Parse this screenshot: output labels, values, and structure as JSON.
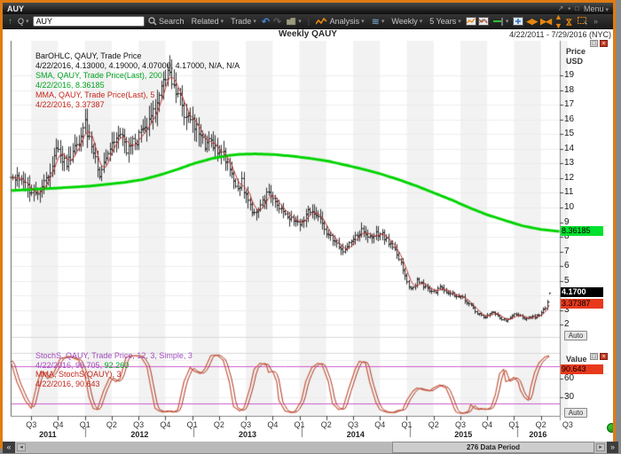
{
  "window": {
    "title": "AUY",
    "menu_label": "Menu"
  },
  "toolbar": {
    "quote_type": "Q",
    "symbol_input": "AUY",
    "search_label": "Search",
    "related_label": "Related",
    "trade_label": "Trade",
    "analysis_label": "Analysis",
    "period_label": "Weekly",
    "range_label": "5 Years"
  },
  "chart": {
    "title": "Weekly QAUY",
    "date_range": "4/22/2011 - 7/29/2016 (NYC)",
    "legend_main": {
      "l1": "BarOHLC, QAUY, Trade Price",
      "l2": "4/22/2016, 4.13000, 4.19000, 4.07000, 4.17000, N/A, N/A",
      "l3": "SMA, QAUY, Trade Price(Last),  200",
      "l4": "4/22/2016, 8.36185",
      "l5": "MMA, QAUY, Trade Price(Last),  5",
      "l6": "4/22/2016, 3.37387"
    },
    "legend_stoch": {
      "l1": "StochS, QAUY, Trade Price,  12, 3, Simple, 3",
      "l2a": "4/22/2016, 96.705, ",
      "l2b": "92.260",
      "l3": "MMA, StochS(QAUY),  3",
      "l4": "4/22/2016, 90.643"
    },
    "price_axis": {
      "header_line1": "Price",
      "header_line2": "USD",
      "ticks": [
        19,
        18,
        17,
        16,
        15,
        14,
        13,
        12,
        11,
        10,
        9,
        8,
        7,
        6,
        5,
        4,
        3,
        2
      ],
      "sma_badge": "8.36185",
      "last_badge": "4.1700",
      "mma_badge": "3.37387",
      "auto_label": "Auto"
    },
    "value_axis": {
      "header": "Value",
      "ticks": [
        60,
        30
      ],
      "badge": "90.643",
      "auto_label": "Auto"
    },
    "x_axis": {
      "quarter_labels": [
        "Q3",
        "Q4",
        "Q1",
        "Q2",
        "Q3",
        "Q4",
        "Q1",
        "Q2",
        "Q3",
        "Q4",
        "Q1",
        "Q2",
        "Q3",
        "Q4",
        "Q1",
        "Q2",
        "Q3",
        "Q4",
        "Q1",
        "Q2",
        "Q3"
      ],
      "first_quarter_week": 10,
      "weeks_per_quarter": 13,
      "years": [
        {
          "label": "2011",
          "week": 18
        },
        {
          "label": "2012",
          "week": 62.5
        },
        {
          "label": "2013",
          "week": 114.8
        },
        {
          "label": "2014",
          "week": 167.2
        },
        {
          "label": "2015",
          "week": 219.4
        },
        {
          "label": "2016",
          "week": 255.6
        }
      ],
      "year_boundary_weeks": [
        36.3,
        88.7,
        141,
        193.3,
        245.6
      ]
    }
  },
  "scrollbar": {
    "label": "276 Data Period"
  },
  "chart_data": {
    "type": "ohlc",
    "symbol": "QAUY",
    "period": "Weekly",
    "visible_range": {
      "start": "4/22/2011",
      "end": "7/29/2016"
    },
    "data_period_count": 276,
    "bar_weeks": 262,
    "price_range_shown": [
      2,
      19
    ],
    "last_bar": {
      "date": "4/22/2016",
      "open": 4.13,
      "high": 4.19,
      "low": 4.07,
      "close": 4.17
    },
    "sma200_last": 8.36185,
    "mma5_last": 3.37387,
    "stoch_last": {
      "stoch": 96.705,
      "signal": 92.26,
      "mma": 90.643
    },
    "stoch_bands": [
      80,
      20
    ],
    "colors": {
      "bars": "#1a1a1a",
      "sma": "#00d400",
      "mma": "#c03030",
      "stoch": "#c8583b",
      "stoch_mma": "#aa3224",
      "bands": "#cd5ccd",
      "stripe": "#f2f2f2",
      "grid": "#ececec",
      "badge_green": "#00e12e",
      "badge_black": "#000000",
      "badge_red": "#e8391d"
    },
    "close_anchors": [
      [
        0,
        12.2
      ],
      [
        6,
        11.6
      ],
      [
        12,
        10.9
      ],
      [
        18,
        12.3
      ],
      [
        23,
        14.2
      ],
      [
        26,
        13.0
      ],
      [
        29,
        13.3
      ],
      [
        33,
        14.6
      ],
      [
        36,
        15.6
      ],
      [
        40,
        13.8
      ],
      [
        43,
        12.4
      ],
      [
        46,
        13.5
      ],
      [
        50,
        14.6
      ],
      [
        53,
        14.9
      ],
      [
        56,
        14.0
      ],
      [
        59,
        14.3
      ],
      [
        62,
        14.8
      ],
      [
        65,
        15.2
      ],
      [
        68,
        16.0
      ],
      [
        71,
        17.3
      ],
      [
        74,
        18.3
      ],
      [
        76,
        19.3
      ],
      [
        78,
        18.5
      ],
      [
        80,
        18.2
      ],
      [
        82,
        17.4
      ],
      [
        84,
        16.3
      ],
      [
        86,
        15.9
      ],
      [
        88,
        16.1
      ],
      [
        90,
        15.3
      ],
      [
        93,
        14.6
      ],
      [
        95,
        14.1
      ],
      [
        97,
        14.5
      ],
      [
        99,
        14.2
      ],
      [
        101,
        13.9
      ],
      [
        103,
        13.5
      ],
      [
        106,
        12.6
      ],
      [
        108,
        11.9
      ],
      [
        110,
        11.3
      ],
      [
        112,
        11.7
      ],
      [
        114,
        10.9
      ],
      [
        116,
        10.1
      ],
      [
        118,
        9.6
      ],
      [
        121,
        10.1
      ],
      [
        123,
        10.7
      ],
      [
        125,
        10.9
      ],
      [
        127,
        10.5
      ],
      [
        129,
        10.0
      ],
      [
        131,
        9.7
      ],
      [
        133,
        9.4
      ],
      [
        136,
        9.2
      ],
      [
        138,
        8.9
      ],
      [
        140,
        8.7
      ],
      [
        142,
        9.2
      ],
      [
        144,
        9.7
      ],
      [
        146,
        9.5
      ],
      [
        149,
        9.2
      ],
      [
        151,
        8.8
      ],
      [
        153,
        8.4
      ],
      [
        155,
        8.0
      ],
      [
        157,
        7.6
      ],
      [
        159,
        7.3
      ],
      [
        161,
        7.1
      ],
      [
        164,
        7.4
      ],
      [
        166,
        7.9
      ],
      [
        168,
        8.2
      ],
      [
        170,
        8.4
      ],
      [
        172,
        8.2
      ],
      [
        174,
        7.9
      ],
      [
        176,
        8.1
      ],
      [
        179,
        8.3
      ],
      [
        181,
        8.0
      ],
      [
        183,
        7.7
      ],
      [
        185,
        7.3
      ],
      [
        187,
        6.8
      ],
      [
        189,
        6.2
      ],
      [
        190,
        5.6
      ],
      [
        192,
        4.9
      ],
      [
        194,
        4.5
      ],
      [
        196,
        4.7
      ],
      [
        197,
        5.0
      ],
      [
        199,
        4.8
      ],
      [
        201,
        4.6
      ],
      [
        203,
        4.4
      ],
      [
        204,
        4.2
      ],
      [
        206,
        4.3
      ],
      [
        208,
        4.5
      ],
      [
        210,
        4.4
      ],
      [
        212,
        4.2
      ],
      [
        214,
        4.1
      ],
      [
        216,
        4.0
      ],
      [
        218,
        3.9
      ],
      [
        220,
        3.7
      ],
      [
        222,
        3.4
      ],
      [
        224,
        3.1
      ],
      [
        226,
        2.8
      ],
      [
        228,
        2.6
      ],
      [
        230,
        2.5
      ],
      [
        232,
        2.7
      ],
      [
        234,
        2.9
      ],
      [
        236,
        2.6
      ],
      [
        238,
        2.4
      ],
      [
        240,
        2.3
      ],
      [
        242,
        2.5
      ],
      [
        244,
        2.8
      ],
      [
        246,
        2.7
      ],
      [
        248,
        2.5
      ],
      [
        250,
        2.4
      ],
      [
        252,
        2.6
      ],
      [
        254,
        2.5
      ],
      [
        256,
        2.7
      ],
      [
        258,
        3.0
      ],
      [
        259,
        3.2
      ],
      [
        260,
        3.6
      ],
      [
        261,
        4.17
      ]
    ],
    "sma200_anchors": [
      [
        0,
        11.15
      ],
      [
        20,
        11.3
      ],
      [
        38,
        11.45
      ],
      [
        55,
        11.7
      ],
      [
        64,
        11.9
      ],
      [
        72,
        12.2
      ],
      [
        81,
        12.6
      ],
      [
        89,
        13.0
      ],
      [
        98,
        13.35
      ],
      [
        106,
        13.55
      ],
      [
        111,
        13.62
      ],
      [
        119,
        13.65
      ],
      [
        128,
        13.6
      ],
      [
        136,
        13.5
      ],
      [
        145,
        13.35
      ],
      [
        154,
        13.15
      ],
      [
        162,
        12.9
      ],
      [
        171,
        12.6
      ],
      [
        179,
        12.3
      ],
      [
        188,
        11.9
      ],
      [
        197,
        11.45
      ],
      [
        205,
        11.0
      ],
      [
        214,
        10.5
      ],
      [
        222,
        10.0
      ],
      [
        231,
        9.5
      ],
      [
        240,
        9.1
      ],
      [
        248,
        8.75
      ],
      [
        257,
        8.5
      ],
      [
        266,
        8.36
      ]
    ],
    "stoch_anchors": [
      [
        0,
        88
      ],
      [
        3,
        55
      ],
      [
        7,
        25
      ],
      [
        10,
        12
      ],
      [
        13,
        55
      ],
      [
        15,
        72
      ],
      [
        18,
        60
      ],
      [
        21,
        70
      ],
      [
        24,
        92
      ],
      [
        28,
        96
      ],
      [
        33,
        90
      ],
      [
        36,
        65
      ],
      [
        38,
        30
      ],
      [
        40,
        12
      ],
      [
        42,
        10
      ],
      [
        45,
        40
      ],
      [
        48,
        62
      ],
      [
        51,
        55
      ],
      [
        53,
        60
      ],
      [
        56,
        95
      ],
      [
        59,
        97
      ],
      [
        63,
        96
      ],
      [
        66,
        80
      ],
      [
        68,
        45
      ],
      [
        70,
        12
      ],
      [
        72,
        8
      ],
      [
        74,
        6
      ],
      [
        76,
        8
      ],
      [
        79,
        6
      ],
      [
        81,
        10
      ],
      [
        84,
        55
      ],
      [
        87,
        78
      ],
      [
        89,
        72
      ],
      [
        92,
        68
      ],
      [
        94,
        75
      ],
      [
        97,
        97
      ],
      [
        100,
        98
      ],
      [
        103,
        90
      ],
      [
        106,
        55
      ],
      [
        108,
        15
      ],
      [
        111,
        8
      ],
      [
        113,
        12
      ],
      [
        116,
        45
      ],
      [
        118,
        75
      ],
      [
        121,
        85
      ],
      [
        124,
        82
      ],
      [
        125,
        70
      ],
      [
        127,
        72
      ],
      [
        129,
        55
      ],
      [
        130,
        25
      ],
      [
        133,
        8
      ],
      [
        136,
        5
      ],
      [
        138,
        8
      ],
      [
        141,
        25
      ],
      [
        143,
        55
      ],
      [
        146,
        78
      ],
      [
        149,
        85
      ],
      [
        151,
        82
      ],
      [
        154,
        55
      ],
      [
        156,
        20
      ],
      [
        159,
        10
      ],
      [
        161,
        12
      ],
      [
        164,
        45
      ],
      [
        167,
        75
      ],
      [
        169,
        88
      ],
      [
        172,
        85
      ],
      [
        174,
        55
      ],
      [
        177,
        22
      ],
      [
        179,
        10
      ],
      [
        182,
        6
      ],
      [
        185,
        5
      ],
      [
        187,
        8
      ],
      [
        190,
        10
      ],
      [
        192,
        25
      ],
      [
        195,
        40
      ],
      [
        197,
        45
      ],
      [
        200,
        42
      ],
      [
        203,
        40
      ],
      [
        205,
        45
      ],
      [
        208,
        50
      ],
      [
        209,
        48
      ],
      [
        211,
        45
      ],
      [
        213,
        30
      ],
      [
        215,
        12
      ],
      [
        216,
        6
      ],
      [
        218,
        4
      ],
      [
        220,
        5
      ],
      [
        222,
        8
      ],
      [
        223,
        18
      ],
      [
        225,
        12
      ],
      [
        227,
        10
      ],
      [
        228,
        12
      ],
      [
        230,
        10
      ],
      [
        232,
        12
      ],
      [
        233,
        15
      ],
      [
        235,
        35
      ],
      [
        237,
        68
      ],
      [
        239,
        75
      ],
      [
        240,
        55
      ],
      [
        242,
        58
      ],
      [
        244,
        62
      ],
      [
        246,
        55
      ],
      [
        247,
        42
      ],
      [
        249,
        30
      ],
      [
        251,
        25
      ],
      [
        252,
        45
      ],
      [
        254,
        70
      ],
      [
        256,
        85
      ],
      [
        258,
        92
      ],
      [
        259,
        95
      ],
      [
        261,
        97
      ]
    ]
  }
}
